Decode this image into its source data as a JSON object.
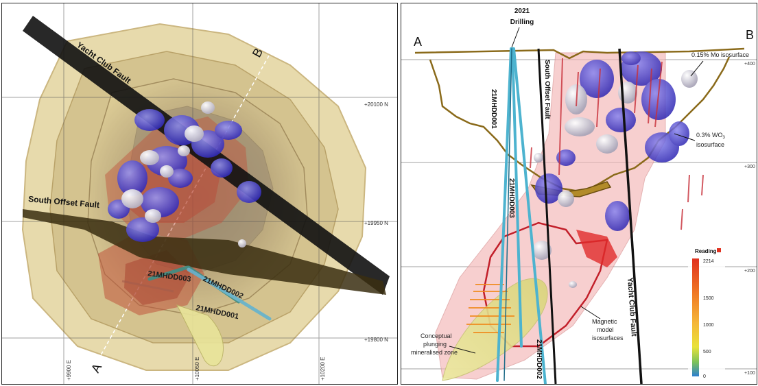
{
  "left_view": {
    "fault_labels": {
      "yacht_club": "Yacht Club Fault",
      "south_offset": "South Offset Fault"
    },
    "section_ends": {
      "start": "A",
      "end": "B"
    },
    "northing_labels": [
      "+20100 N",
      "+19950 N",
      "+19800 N"
    ],
    "easting_labels": [
      "+9900 E",
      "+10050 E",
      "+10200 E"
    ],
    "holes": [
      "21MHDD003",
      "21MHDD002",
      "21MHDD001"
    ]
  },
  "right_view": {
    "section_ends": {
      "start": "A",
      "end": "B"
    },
    "drilling_title_year": "2021",
    "drilling_title_word": "Drilling",
    "holes": {
      "h1": "21MHDD001",
      "h3": "21MHDD003",
      "h2": "21MHDD002"
    },
    "fault_labels": {
      "south_offset": "South Offset Fault",
      "yacht_club": "Yacht Club Fault"
    },
    "mo_isosurface": "0.15% Mo isosurface",
    "wo3": {
      "line1": "0.3% WO",
      "sub": "3",
      "line2": "isosurface"
    },
    "magnetic": [
      "Magnetic",
      "model",
      "isosurfaces"
    ],
    "conceptual": [
      "Conceptual",
      "plunging",
      "mineralised zone"
    ],
    "elevation_labels": [
      "+400",
      "+300",
      "+200",
      "+100"
    ],
    "legend": {
      "title": "Reading",
      "max": "2214",
      "ticks": [
        "1500",
        "1000",
        "500",
        "0"
      ]
    }
  },
  "colors": {
    "shell": "#c9b37a",
    "fault": "#1a1a1a",
    "mo_body": "#e8e6ee",
    "wo3_body": "#3b35c8",
    "magnetic": "#e04545",
    "drillhole": "#4db3cf",
    "pit_outline": "#8a6a1a",
    "plunge_zone": "#f2ee9e"
  }
}
